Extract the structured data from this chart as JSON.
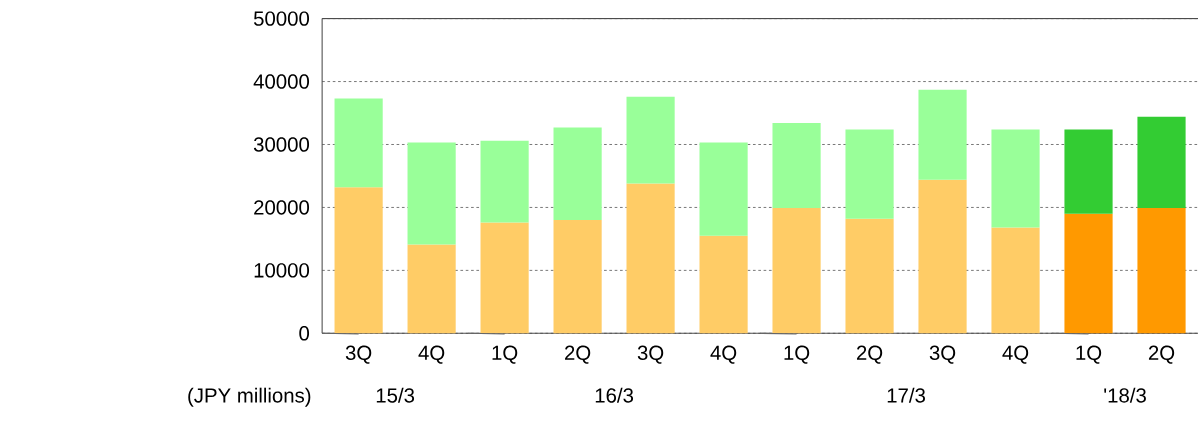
{
  "chart_data": {
    "type": "bar",
    "stacked": true,
    "ylabel": "(JPY millions)",
    "categories": [
      "3Q",
      "4Q",
      "1Q",
      "2Q",
      "3Q",
      "4Q",
      "1Q",
      "2Q",
      "3Q",
      "4Q",
      "1Q",
      "2Q"
    ],
    "series": [
      {
        "colors": [
          "#ffcc66",
          "#ffcc66",
          "#ffcc66",
          "#ffcc66",
          "#ffcc66",
          "#ffcc66",
          "#ffcc66",
          "#ffcc66",
          "#ffcc66",
          "#ffcc66",
          "#ff9900",
          "#ff9900"
        ],
        "values": [
          23200,
          14100,
          17600,
          18000,
          23800,
          15500,
          19900,
          18200,
          24400,
          16800,
          19000,
          19900
        ]
      },
      {
        "colors": [
          "#99ff99",
          "#99ff99",
          "#99ff99",
          "#99ff99",
          "#99ff99",
          "#99ff99",
          "#99ff99",
          "#99ff99",
          "#99ff99",
          "#99ff99",
          "#33cc33",
          "#33cc33"
        ],
        "values": [
          14100,
          16200,
          13000,
          14700,
          13800,
          14800,
          13500,
          14200,
          14300,
          15600,
          13400,
          14500
        ]
      }
    ],
    "annotations": [
      "15/3",
      "16/3",
      "17/3",
      "'18/3"
    ],
    "ylim": [
      0,
      50000
    ],
    "yticks": [
      0,
      10000,
      20000,
      30000,
      40000,
      50000
    ],
    "grid": "y"
  }
}
